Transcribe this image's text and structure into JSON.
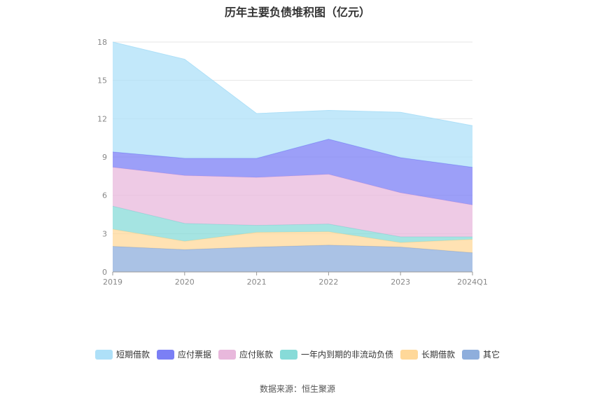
{
  "title": "历年主要负债堆积图（亿元）",
  "source": "数据来源：恒生聚源",
  "chart_data": {
    "type": "area",
    "stacked": true,
    "categories": [
      "2019",
      "2020",
      "2021",
      "2022",
      "2023",
      "2024Q1"
    ],
    "ylim": [
      0,
      18
    ],
    "yticks": [
      0,
      3,
      6,
      9,
      12,
      15,
      18
    ],
    "grid": true,
    "legend_position": "bottom",
    "series": [
      {
        "name": "其它",
        "color": "#8eaedc",
        "values": [
          2.0,
          1.75,
          1.95,
          2.1,
          1.95,
          1.5
        ]
      },
      {
        "name": "长期借款",
        "color": "#ffd899",
        "values": [
          1.35,
          0.65,
          1.15,
          1.05,
          0.35,
          1.05
        ]
      },
      {
        "name": "一年内到期的非流动负债",
        "color": "#87dbd8",
        "values": [
          1.8,
          1.4,
          0.55,
          0.6,
          0.45,
          0.2
        ]
      },
      {
        "name": "应付账款",
        "color": "#e8b8dc",
        "values": [
          3.05,
          3.75,
          3.75,
          3.9,
          3.45,
          2.5
        ]
      },
      {
        "name": "应付票据",
        "color": "#7b7ff5",
        "values": [
          1.2,
          1.35,
          1.5,
          2.75,
          2.75,
          2.95
        ]
      },
      {
        "name": "短期借款",
        "color": "#aee0f8",
        "values": [
          8.6,
          7.75,
          3.5,
          2.25,
          3.55,
          3.25
        ]
      }
    ]
  }
}
